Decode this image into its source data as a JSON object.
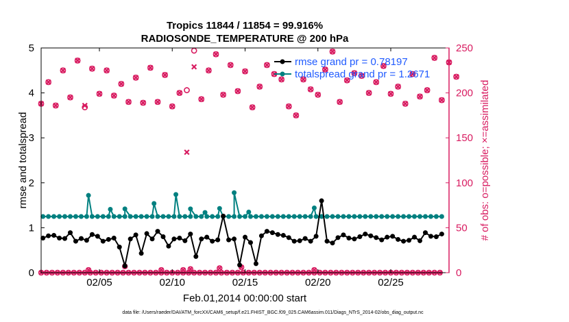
{
  "chart_data": {
    "type": "line",
    "title_line1": "Tropics 11844 / 11854 = 99.916%",
    "title_line2": "RADIOSONDE_TEMPERATURE @ 200 hPa",
    "xlabel": "Feb.01,2014 00:00:00 start",
    "ylabel_left": "rmse and totalspread",
    "ylabel_right": "# of obs: o=possible; ×=assimilated",
    "footer": "data file: /Users/raeder/DAI/ATM_forcXX/CAM6_setup/f.e21.FHIST_BGC.f09_025.CAM6assim.011/Diags_NTrS_2014-02/obs_diag_output.nc",
    "xlim": [
      1.0,
      29.0
    ],
    "ylim_left": [
      0,
      5
    ],
    "ylim_right": [
      0,
      250
    ],
    "x_ticks": [
      {
        "value": 5,
        "label": "02/05"
      },
      {
        "value": 10,
        "label": "02/10"
      },
      {
        "value": 15,
        "label": "02/15"
      },
      {
        "value": 20,
        "label": "02/20"
      },
      {
        "value": 25,
        "label": "02/25"
      }
    ],
    "y_ticks_left": [
      "0",
      "1",
      "2",
      "3",
      "4",
      "5"
    ],
    "y_ticks_right": [
      "0",
      "50",
      "100",
      "150",
      "200",
      "250"
    ],
    "colors": {
      "rmse": "#000000",
      "spread": "#008080",
      "obs": "#d81b60",
      "legend_text": "#1f5aff",
      "axis_right": "#d81b60"
    },
    "series": [
      {
        "name": "rmse",
        "legend": "rmse grand pr = 0.78197",
        "values": [
          0.77,
          0.82,
          0.83,
          0.77,
          0.76,
          0.89,
          0.7,
          0.76,
          0.72,
          0.85,
          0.81,
          0.7,
          0.74,
          0.77,
          0.57,
          0.15,
          0.75,
          0.84,
          0.43,
          0.87,
          0.75,
          0.92,
          0.8,
          0.59,
          0.75,
          0.77,
          0.71,
          0.86,
          0.36,
          0.75,
          0.79,
          0.7,
          0.73,
          1.26,
          0.73,
          0.75,
          0.17,
          0.79,
          0.67,
          0.2,
          0.82,
          0.92,
          0.89,
          0.85,
          0.83,
          0.78,
          0.7,
          0.71,
          0.76,
          0.7,
          0.81,
          1.6,
          0.7,
          0.66,
          0.78,
          0.84,
          0.77,
          0.75,
          0.8,
          0.86,
          0.82,
          0.78,
          0.73,
          0.79,
          0.81,
          0.74,
          0.7,
          0.72,
          0.79,
          0.71,
          0.89,
          0.81,
          0.8,
          0.86
        ],
        "x_start": 1.125,
        "x_step": 0.375
      },
      {
        "name": "totalspread",
        "legend": "totalspread grand pr = 1.2671",
        "values": [
          1.25,
          1.25,
          1.25,
          1.25,
          1.25,
          1.25,
          1.25,
          1.25,
          1.25,
          1.25,
          1.25,
          1.25,
          1.25,
          1.25,
          1.25,
          1.25,
          1.25,
          1.25,
          1.25,
          1.25,
          1.25,
          1.25,
          1.25,
          1.25,
          1.25,
          1.25,
          1.25,
          1.25,
          1.25,
          1.25,
          1.25,
          1.25,
          1.25,
          1.25,
          1.25,
          1.25,
          1.25,
          1.25,
          1.25,
          1.25,
          1.25,
          1.25,
          1.25,
          1.25,
          1.25,
          1.25,
          1.25,
          1.25,
          1.25,
          1.25,
          1.25,
          1.25,
          1.25,
          1.25,
          1.25,
          1.25,
          1.25,
          1.25,
          1.25,
          1.25,
          1.25,
          1.25,
          1.25,
          1.25,
          1.25,
          1.25,
          1.25,
          1.25,
          1.25,
          1.25,
          1.25,
          1.25,
          1.25,
          1.25
        ],
        "spikes": [
          {
            "x": 4.25,
            "y": 1.72
          },
          {
            "x": 5.75,
            "y": 1.41
          },
          {
            "x": 6.75,
            "y": 1.42
          },
          {
            "x": 8.75,
            "y": 1.54
          },
          {
            "x": 10.25,
            "y": 1.74
          },
          {
            "x": 11.25,
            "y": 1.42
          },
          {
            "x": 12.25,
            "y": 1.34
          },
          {
            "x": 13.25,
            "y": 1.43
          },
          {
            "x": 14.25,
            "y": 1.78
          },
          {
            "x": 15.25,
            "y": 1.35
          },
          {
            "x": 19.75,
            "y": 1.44
          }
        ],
        "x_start": 1.125,
        "x_step": 0.375
      },
      {
        "name": "possible",
        "values": [
          188,
          212,
          186,
          225,
          195,
          236,
          184,
          227,
          199,
          225,
          197,
          210,
          190,
          217,
          189,
          228,
          190,
          220,
          185,
          200,
          203,
          247,
          193,
          225,
          243,
          198,
          231,
          202,
          224,
          184,
          207,
          231,
          221,
          215,
          185,
          175,
          215,
          204,
          198,
          226,
          246,
          190,
          214,
          222,
          219,
          200,
          212,
          230,
          199,
          207,
          188,
          221,
          196,
          203,
          239,
          192,
          234,
          218
        ],
        "x_start": 1.0,
        "x_step": 0.5
      },
      {
        "name": "assimilated",
        "values": [
          188,
          212,
          186,
          225,
          195,
          236,
          186,
          227,
          199,
          225,
          197,
          210,
          190,
          217,
          189,
          228,
          190,
          220,
          185,
          200,
          134,
          229,
          193,
          225,
          243,
          198,
          231,
          202,
          224,
          184,
          207,
          231,
          221,
          215,
          185,
          175,
          215,
          204,
          198,
          226,
          246,
          190,
          214,
          222,
          219,
          200,
          212,
          230,
          199,
          207,
          188,
          221,
          196,
          203,
          239,
          192,
          234,
          218
        ],
        "x_start": 1.0,
        "x_step": 0.5
      },
      {
        "name": "obs_zero",
        "values_possible": [
          0,
          0,
          0,
          0,
          0,
          0,
          0,
          0,
          0,
          0,
          0,
          0,
          0,
          0,
          0,
          0,
          0,
          0,
          0,
          0,
          0,
          0,
          0,
          0,
          0,
          0,
          0,
          0,
          0,
          0,
          0,
          0,
          0,
          0,
          0,
          0,
          0,
          0,
          0,
          0,
          0,
          0,
          0,
          0,
          0,
          0,
          0,
          0,
          0,
          0,
          0,
          0,
          0,
          0,
          0,
          0,
          0,
          0,
          0,
          0,
          0,
          0,
          0,
          0,
          0,
          0,
          0,
          0,
          0,
          0,
          0,
          0,
          0,
          0
        ],
        "spikes": [
          {
            "x": 4.25,
            "y": 3
          },
          {
            "x": 6.75,
            "y": 7
          },
          {
            "x": 9.25,
            "y": 3
          },
          {
            "x": 10.75,
            "y": 3
          },
          {
            "x": 11.25,
            "y": 4
          },
          {
            "x": 13.25,
            "y": 5
          },
          {
            "x": 14.75,
            "y": 6
          },
          {
            "x": 19.75,
            "y": 3
          }
        ],
        "x_start": 1.0,
        "x_step": 0.375
      }
    ]
  }
}
